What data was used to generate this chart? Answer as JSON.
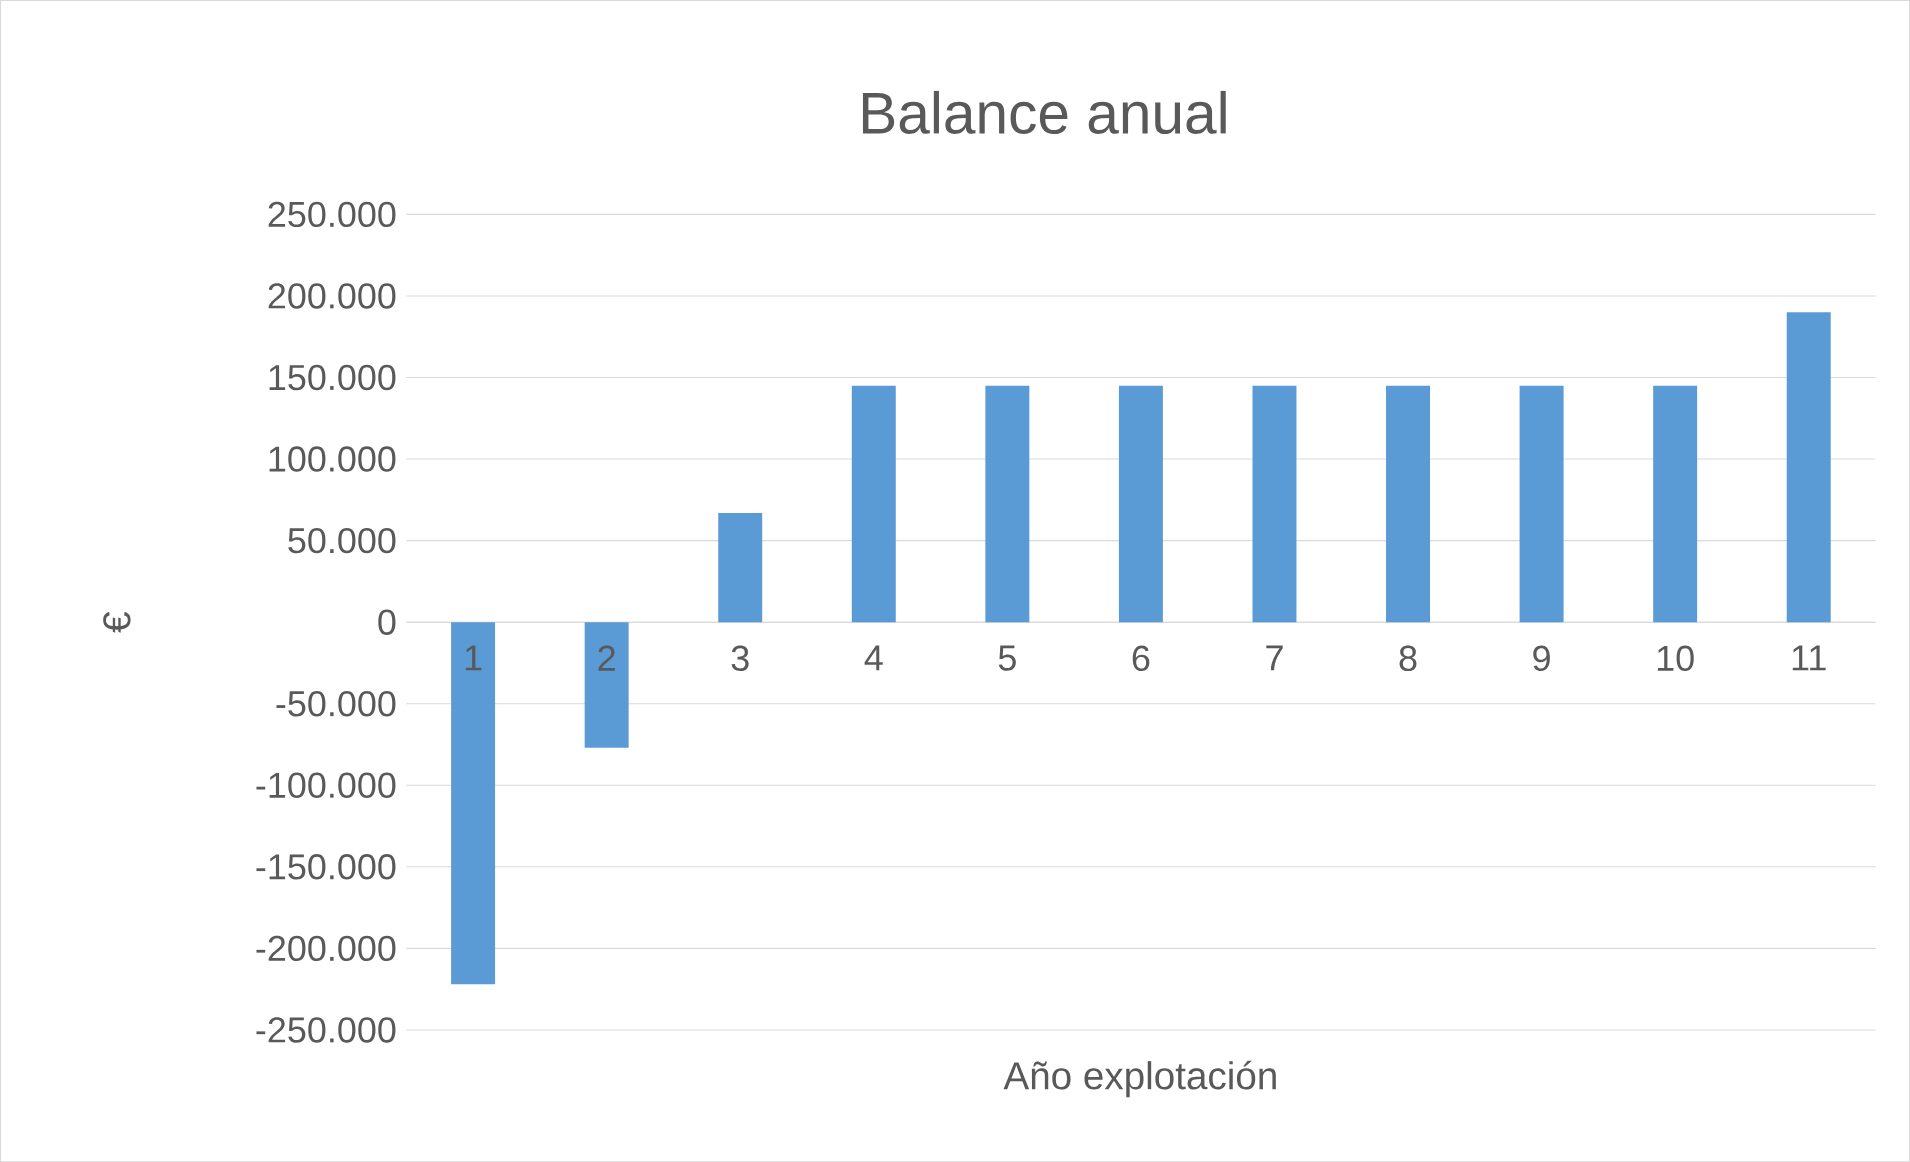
{
  "chart_data": {
    "type": "bar",
    "title": "Balance anual",
    "xlabel": "Año explotación",
    "ylabel": "€",
    "categories": [
      "1",
      "2",
      "3",
      "4",
      "5",
      "6",
      "7",
      "8",
      "9",
      "10",
      "11"
    ],
    "values": [
      -222000,
      -77000,
      67000,
      145000,
      145000,
      145000,
      145000,
      145000,
      145000,
      145000,
      190000
    ],
    "color": "#5b9bd5",
    "ylim": [
      -250000,
      250000
    ],
    "yticks": [
      {
        "value": -250000,
        "label": "-250.000"
      },
      {
        "value": -200000,
        "label": "-200.000"
      },
      {
        "value": -150000,
        "label": "-150.000"
      },
      {
        "value": -100000,
        "label": "-100.000"
      },
      {
        "value": -50000,
        "label": "-50.000"
      },
      {
        "value": 0,
        "label": "0"
      },
      {
        "value": 50000,
        "label": "50.000"
      },
      {
        "value": 100000,
        "label": "100.000"
      },
      {
        "value": 150000,
        "label": "150.000"
      },
      {
        "value": 200000,
        "label": "200.000"
      },
      {
        "value": 250000,
        "label": "250.000"
      }
    ],
    "grid": "y"
  }
}
